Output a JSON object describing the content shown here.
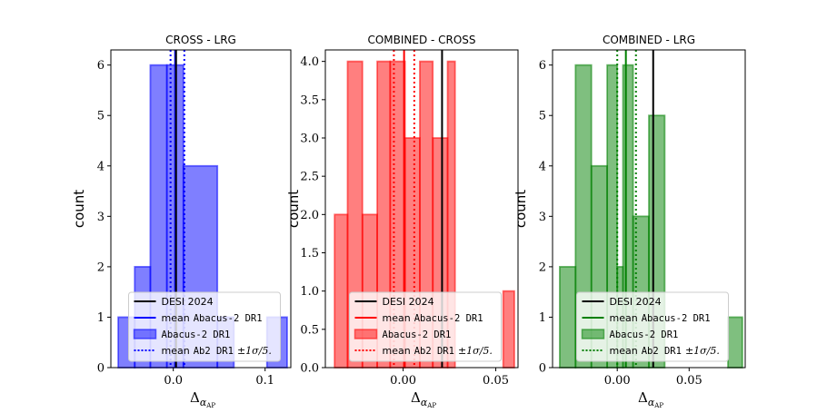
{
  "chart_data": [
    {
      "type": "histogram",
      "title": "CROSS - LRG",
      "xlabel": "Δ",
      "xlabel_sub": "α",
      "xlabel_subsub": "AP",
      "ylabel": "count",
      "color": "#0000ff",
      "xlim": [
        -0.068,
        0.128
      ],
      "ylim": [
        0,
        6.3
      ],
      "xticks": [
        {
          "v": 0.0,
          "label": "0.0"
        },
        {
          "v": 0.1,
          "label": "0.1"
        }
      ],
      "yticks": [
        {
          "v": 0,
          "label": "0"
        },
        {
          "v": 1,
          "label": "1"
        },
        {
          "v": 2,
          "label": "2"
        },
        {
          "v": 3,
          "label": "3"
        },
        {
          "v": 4,
          "label": "4"
        },
        {
          "v": 5,
          "label": "5"
        },
        {
          "v": 6,
          "label": "6"
        }
      ],
      "bins": [
        {
          "x0": -0.06,
          "x1": -0.042,
          "count": 1
        },
        {
          "x0": -0.042,
          "x1": -0.025,
          "count": 2
        },
        {
          "x0": -0.025,
          "x1": -0.007,
          "count": 6
        },
        {
          "x0": -0.007,
          "x1": 0.011,
          "count": 6
        },
        {
          "x0": 0.011,
          "x1": 0.048,
          "count": 4
        },
        {
          "x0": 0.048,
          "x1": 0.066,
          "count": 1
        },
        {
          "x0": 0.066,
          "x1": 0.102,
          "count": 0
        },
        {
          "x0": 0.102,
          "x1": 0.124,
          "count": 1
        }
      ],
      "desi_2024": 0.003,
      "mean_abacus": 0.002,
      "sigma_band": [
        -0.003,
        0.012
      ]
    },
    {
      "type": "histogram",
      "title": "COMBINED - CROSS",
      "xlabel": "Δ",
      "xlabel_sub": "α",
      "xlabel_subsub": "AP",
      "ylabel": "count",
      "color": "#ff0000",
      "xlim": [
        -0.042,
        0.062
      ],
      "ylim": [
        0,
        4.15
      ],
      "xticks": [
        {
          "v": 0.0,
          "label": "0.00"
        },
        {
          "v": 0.05,
          "label": "0.05"
        }
      ],
      "yticks": [
        {
          "v": 0,
          "label": "0.0"
        },
        {
          "v": 0.5,
          "label": "0.5"
        },
        {
          "v": 1,
          "label": "1.0"
        },
        {
          "v": 1.5,
          "label": "1.5"
        },
        {
          "v": 2,
          "label": "2.0"
        },
        {
          "v": 2.5,
          "label": "2.5"
        },
        {
          "v": 3,
          "label": "3.0"
        },
        {
          "v": 3.5,
          "label": "3.5"
        },
        {
          "v": 4,
          "label": "4.0"
        }
      ],
      "bins": [
        {
          "x0": -0.037,
          "x1": -0.03,
          "count": 2
        },
        {
          "x0": -0.03,
          "x1": -0.022,
          "count": 4
        },
        {
          "x0": -0.022,
          "x1": -0.014,
          "count": 2
        },
        {
          "x0": -0.014,
          "x1": -0.007,
          "count": 4
        },
        {
          "x0": -0.007,
          "x1": 0.001,
          "count": 4
        },
        {
          "x0": 0.001,
          "x1": 0.009,
          "count": 3
        },
        {
          "x0": 0.009,
          "x1": 0.016,
          "count": 4
        },
        {
          "x0": 0.016,
          "x1": 0.024,
          "count": 3
        },
        {
          "x0": 0.024,
          "x1": 0.028,
          "count": 4
        },
        {
          "x0": 0.028,
          "x1": 0.054,
          "count": 0
        },
        {
          "x0": 0.054,
          "x1": 0.06,
          "count": 1
        }
      ],
      "desi_2024": 0.021,
      "mean_abacus": 0.0005,
      "sigma_band": [
        -0.005,
        0.006
      ]
    },
    {
      "type": "histogram",
      "title": "COMBINED - LRG",
      "xlabel": "Δ",
      "xlabel_sub": "α",
      "xlabel_subsub": "AP",
      "ylabel": "count",
      "color": "#008000",
      "xlim": [
        -0.045,
        0.089
      ],
      "ylim": [
        0,
        6.3
      ],
      "xticks": [
        {
          "v": 0.0,
          "label": "0.00"
        },
        {
          "v": 0.05,
          "label": "0.05"
        }
      ],
      "yticks": [
        {
          "v": 0,
          "label": "0"
        },
        {
          "v": 1,
          "label": "1"
        },
        {
          "v": 2,
          "label": "2"
        },
        {
          "v": 3,
          "label": "3"
        },
        {
          "v": 4,
          "label": "4"
        },
        {
          "v": 5,
          "label": "5"
        },
        {
          "v": 6,
          "label": "6"
        }
      ],
      "bins": [
        {
          "x0": -0.04,
          "x1": -0.029,
          "count": 2
        },
        {
          "x0": -0.029,
          "x1": -0.018,
          "count": 6
        },
        {
          "x0": -0.018,
          "x1": -0.007,
          "count": 4
        },
        {
          "x0": -0.007,
          "x1": 0.0,
          "count": 6
        },
        {
          "x0": 0.0,
          "x1": 0.004,
          "count": 2
        },
        {
          "x0": 0.004,
          "x1": 0.011,
          "count": 6
        },
        {
          "x0": 0.011,
          "x1": 0.022,
          "count": 3
        },
        {
          "x0": 0.022,
          "x1": 0.033,
          "count": 5
        },
        {
          "x0": 0.033,
          "x1": 0.077,
          "count": 0
        },
        {
          "x0": 0.077,
          "x1": 0.087,
          "count": 1
        }
      ],
      "desi_2024": 0.025,
      "mean_abacus": 0.006,
      "sigma_band": [
        0.0,
        0.013
      ]
    }
  ],
  "legend": {
    "placement": "lower-center",
    "entries": [
      {
        "key": "desi",
        "text": "DESI 2024"
      },
      {
        "key": "mean",
        "text_prefix": "mean",
        "text_mono": "Abacus-2 DR1"
      },
      {
        "key": "hist",
        "text_mono": "Abacus-2 DR1"
      },
      {
        "key": "band",
        "text_prefix": "mean",
        "text_mono": "Ab2 DR1",
        "text_math": "±1σ/5."
      }
    ]
  }
}
